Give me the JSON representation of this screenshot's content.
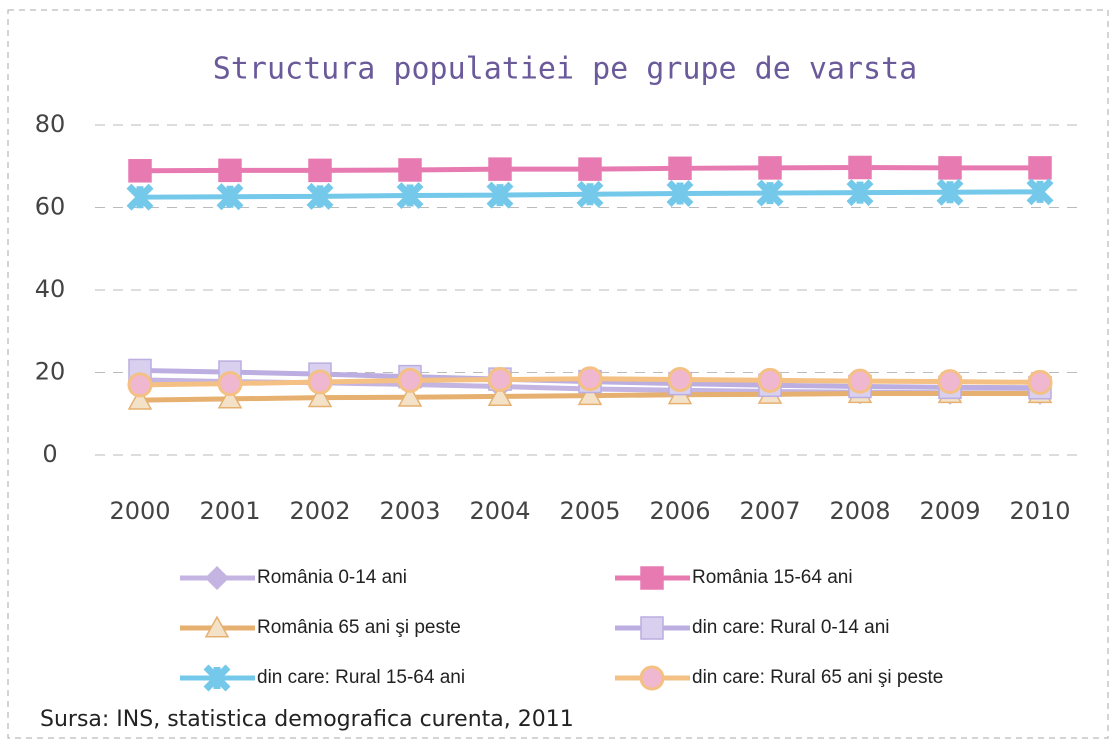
{
  "chart_data": {
    "type": "line",
    "title": "Structura populatiei pe grupe de varsta",
    "source": "Sursa: INS, statistica demografica curenta, 2011",
    "categories": [
      "2000",
      "2001",
      "2002",
      "2003",
      "2004",
      "2005",
      "2006",
      "2007",
      "2008",
      "2009",
      "2010"
    ],
    "ylim": [
      0,
      80
    ],
    "yticks": [
      0,
      20,
      40,
      60,
      80
    ],
    "grid": true,
    "series": [
      {
        "name": "România 0-14 ani",
        "color": "#c4b4e2",
        "marker": "diamond",
        "values": [
          18.2,
          17.8,
          17.5,
          17.1,
          16.6,
          16.0,
          15.7,
          15.4,
          15.2,
          15.1,
          15.1
        ]
      },
      {
        "name": "România 15-64 ani",
        "color": "#e87ab2",
        "marker": "square",
        "values": [
          68.9,
          69.0,
          69.0,
          69.1,
          69.3,
          69.3,
          69.5,
          69.6,
          69.7,
          69.6,
          69.6
        ]
      },
      {
        "name": "România 65 ani şi peste",
        "color": "#e6b070",
        "marker": "triangle",
        "values": [
          13.3,
          13.6,
          13.9,
          14.0,
          14.2,
          14.4,
          14.6,
          14.7,
          14.9,
          14.9,
          14.9
        ]
      },
      {
        "name": "din care: Rural 0-14 ani",
        "color": "#bcaee0",
        "marker": "star-square",
        "values": [
          20.5,
          20.1,
          19.6,
          19.0,
          18.4,
          17.8,
          17.3,
          16.9,
          16.6,
          16.4,
          16.3
        ]
      },
      {
        "name": "din care: Rural 15-64 ani",
        "color": "#74c8ea",
        "marker": "star",
        "values": [
          62.5,
          62.6,
          62.7,
          62.9,
          63.0,
          63.2,
          63.4,
          63.5,
          63.6,
          63.7,
          63.8
        ]
      },
      {
        "name": "din care: Rural 65 ani şi peste",
        "color": "#f4c084",
        "marker": "circle",
        "values": [
          17.0,
          17.3,
          17.7,
          18.1,
          18.3,
          18.5,
          18.3,
          18.1,
          17.9,
          17.8,
          17.6
        ]
      }
    ]
  }
}
